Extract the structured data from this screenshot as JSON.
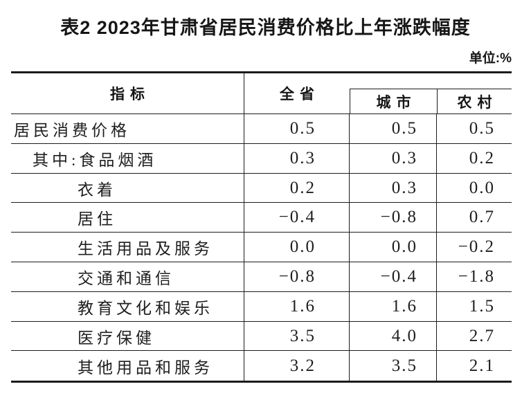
{
  "title": "表2 2023年甘肃省居民消费价格比上年涨跌幅度",
  "unit_note": "单位:%",
  "table": {
    "columns": {
      "indicator": "指标",
      "province": "全省",
      "city": "城市",
      "rural": "农村"
    },
    "rows": [
      {
        "label": "居民消费价格",
        "province": "0.5",
        "city": "0.5",
        "rural": "0.5"
      },
      {
        "label": "其中:食品烟酒",
        "province": "0.3",
        "city": "0.3",
        "rural": "0.2"
      },
      {
        "label": "衣着",
        "province": "0.2",
        "city": "0.3",
        "rural": "0.0"
      },
      {
        "label": "居住",
        "province": "−0.4",
        "city": "−0.8",
        "rural": "0.7"
      },
      {
        "label": "生活用品及服务",
        "province": "0.0",
        "city": "0.0",
        "rural": "−0.2"
      },
      {
        "label": "交通和通信",
        "province": "−0.8",
        "city": "−0.4",
        "rural": "−1.8"
      },
      {
        "label": "教育文化和娱乐",
        "province": "1.6",
        "city": "1.6",
        "rural": "1.5"
      },
      {
        "label": "医疗保健",
        "province": "3.5",
        "city": "4.0",
        "rural": "2.7"
      },
      {
        "label": "其他用品和服务",
        "province": "3.2",
        "city": "3.5",
        "rural": "2.1"
      }
    ]
  },
  "colors": {
    "text": "#1a1a1a",
    "rule": "#1b1b1b",
    "background": "#ffffff"
  }
}
